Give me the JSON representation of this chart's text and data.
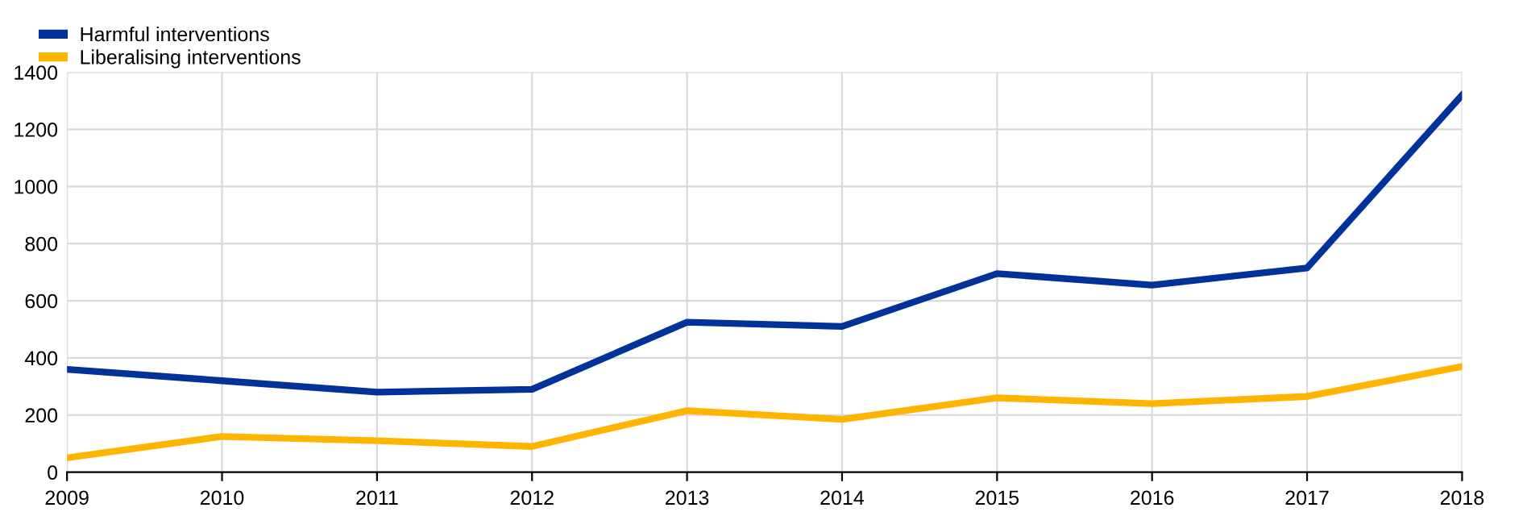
{
  "chart_data": {
    "type": "line",
    "x": [
      2009,
      2010,
      2011,
      2012,
      2013,
      2014,
      2015,
      2016,
      2017,
      2018
    ],
    "series": [
      {
        "name": "Harmful interventions",
        "color": "#003299",
        "values": [
          360,
          320,
          280,
          290,
          525,
          510,
          695,
          655,
          715,
          1320
        ]
      },
      {
        "name": "Liberalising interventions",
        "color": "#ffb400",
        "values": [
          50,
          125,
          110,
          90,
          215,
          185,
          260,
          240,
          265,
          370
        ]
      }
    ],
    "xlim": [
      2009,
      2018
    ],
    "xticks": [
      2009,
      2010,
      2011,
      2012,
      2013,
      2014,
      2015,
      2016,
      2017,
      2018
    ],
    "ylim": [
      0,
      1400
    ],
    "yticks": [
      0,
      200,
      400,
      600,
      800,
      1000,
      1200,
      1400
    ],
    "grid": true,
    "legend": "top left",
    "marker": "none",
    "line_style": "solid"
  }
}
